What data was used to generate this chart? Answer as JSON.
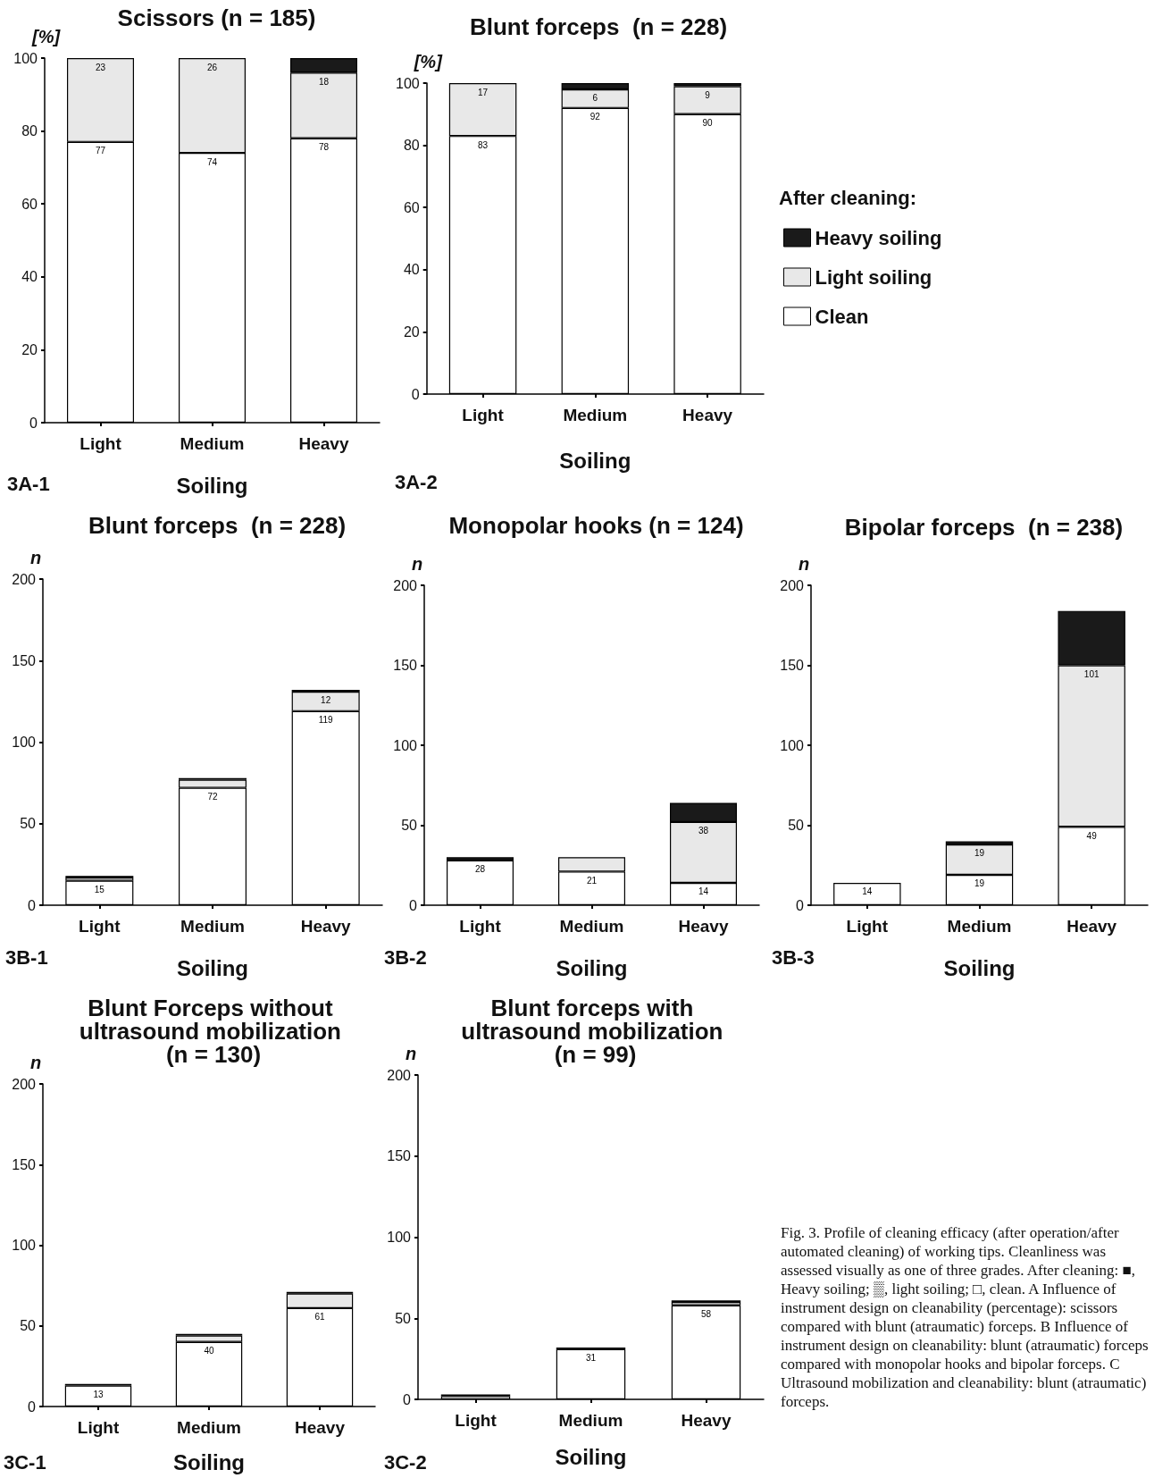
{
  "chart_data": [
    {
      "type": "bar",
      "title": "Scissors (n = 185)",
      "xlabel": "Soiling",
      "ylabel": "[%]",
      "categories": [
        "Light",
        "Medium",
        "Heavy"
      ],
      "stacked": true,
      "ylim": [
        0,
        100
      ],
      "yticks": [
        0,
        20,
        40,
        60,
        80,
        100
      ],
      "annotations": [
        "3A-1"
      ],
      "series": [
        {
          "color": "#ffffff",
          "values": [
            77,
            74,
            78
          ],
          "value_labels": [
            "77",
            "74",
            "78"
          ]
        },
        {
          "color": "#e8e8e8",
          "values": [
            23,
            26,
            18
          ],
          "value_labels": [
            "23",
            "26",
            "18"
          ]
        },
        {
          "color": "#1a1a1a",
          "values": [
            0,
            0,
            4
          ]
        }
      ]
    },
    {
      "type": "bar",
      "title": "Blunt forceps  (n = 228)",
      "xlabel": "Soiling",
      "ylabel": "[%]",
      "categories": [
        "Light",
        "Medium",
        "Heavy"
      ],
      "stacked": true,
      "ylim": [
        0,
        100
      ],
      "yticks": [
        0,
        20,
        40,
        60,
        80,
        100
      ],
      "annotations": [
        "3A-2"
      ],
      "legend": "right",
      "legend_title": "After cleaning:",
      "series": [
        {
          "name": "Clean",
          "color": "#ffffff",
          "values": [
            83,
            92,
            90
          ],
          "value_labels": [
            "83",
            "92",
            "90"
          ]
        },
        {
          "name": "Light soiling",
          "color": "#e8e8e8",
          "values": [
            17,
            6,
            9
          ],
          "value_labels": [
            "17",
            "6",
            "9"
          ]
        },
        {
          "name": "Heavy soiling",
          "color": "#1a1a1a",
          "values": [
            0,
            2,
            1
          ]
        }
      ]
    },
    {
      "type": "bar",
      "title": "Blunt forceps  (n = 228)",
      "xlabel": "Soiling",
      "ylabel": "n",
      "categories": [
        "Light",
        "Medium",
        "Heavy"
      ],
      "stacked": true,
      "ylim": [
        0,
        200
      ],
      "yticks": [
        0,
        50,
        100,
        150,
        200
      ],
      "annotations": [
        "3B-1"
      ],
      "series": [
        {
          "color": "#ffffff",
          "values": [
            15,
            72,
            119
          ],
          "value_labels": [
            "15",
            "72",
            "119"
          ]
        },
        {
          "color": "#e8e8e8",
          "values": [
            2,
            5,
            12
          ],
          "value_labels": [
            null,
            null,
            "12"
          ]
        },
        {
          "color": "#1a1a1a",
          "values": [
            1,
            1,
            1
          ]
        }
      ]
    },
    {
      "type": "bar",
      "title": "Monopolar hooks (n = 124)",
      "xlabel": "Soiling",
      "ylabel": "n",
      "categories": [
        "Light",
        "Medium",
        "Heavy"
      ],
      "stacked": true,
      "ylim": [
        0,
        200
      ],
      "yticks": [
        0,
        50,
        100,
        150,
        200
      ],
      "annotations": [
        "3B-2"
      ],
      "series": [
        {
          "color": "#ffffff",
          "values": [
            28,
            21,
            14
          ],
          "value_labels": [
            "28",
            "21",
            "14"
          ]
        },
        {
          "color": "#e8e8e8",
          "values": [
            0,
            9,
            38
          ],
          "value_labels": [
            null,
            null,
            "38"
          ]
        },
        {
          "color": "#1a1a1a",
          "values": [
            2,
            0,
            12
          ]
        }
      ]
    },
    {
      "type": "bar",
      "title": "Bipolar forceps  (n = 238)",
      "xlabel": "Soiling",
      "ylabel": "n",
      "categories": [
        "Light",
        "Medium",
        "Heavy"
      ],
      "stacked": true,
      "ylim": [
        0,
        200
      ],
      "yticks": [
        0,
        50,
        100,
        150,
        200
      ],
      "annotations": [
        "3B-3"
      ],
      "series": [
        {
          "color": "#ffffff",
          "values": [
            14,
            19,
            49
          ],
          "value_labels": [
            "14",
            "19",
            "49"
          ]
        },
        {
          "color": "#e8e8e8",
          "values": [
            0,
            19,
            101
          ],
          "value_labels": [
            null,
            "19",
            "101"
          ]
        },
        {
          "color": "#1a1a1a",
          "values": [
            0,
            2,
            34
          ]
        }
      ]
    },
    {
      "type": "bar",
      "title": "Blunt Forceps without ultrasound mobilization (n = 130)",
      "xlabel": "Soiling",
      "ylabel": "n",
      "categories": [
        "Light",
        "Medium",
        "Heavy"
      ],
      "stacked": true,
      "ylim": [
        0,
        200
      ],
      "yticks": [
        0,
        50,
        100,
        150,
        200
      ],
      "annotations": [
        "3C-1"
      ],
      "series": [
        {
          "color": "#ffffff",
          "values": [
            13,
            40,
            61
          ],
          "value_labels": [
            "13",
            "40",
            "61"
          ]
        },
        {
          "color": "#e8e8e8",
          "values": [
            0,
            4,
            9
          ]
        },
        {
          "color": "#1a1a1a",
          "values": [
            1,
            1,
            1
          ]
        }
      ]
    },
    {
      "type": "bar",
      "title": "Blunt forceps with ultrasound mobilization (n = 99)",
      "xlabel": "Soiling",
      "ylabel": "n",
      "categories": [
        "Light",
        "Medium",
        "Heavy"
      ],
      "stacked": true,
      "ylim": [
        0,
        200
      ],
      "yticks": [
        0,
        50,
        100,
        150,
        200
      ],
      "annotations": [
        "3C-2"
      ],
      "series": [
        {
          "color": "#ffffff",
          "values": [
            2,
            31,
            58
          ],
          "value_labels": [
            null,
            "31",
            "58"
          ]
        },
        {
          "color": "#e8e8e8",
          "values": [
            0,
            0,
            2
          ]
        },
        {
          "color": "#1a1a1a",
          "values": [
            1,
            1,
            1
          ]
        }
      ]
    },
    {
      "type": "other",
      "annotations": [
        "Fig. 3. Profile of cleaning efficacy (after operation/after automated cleaning) of working tips. Cleanliness was assessed visually as one of three grades. After cleaning: ■, Heavy soiling; ▒, light soiling; □, clean. A Influence of instrument design on cleanability (percentage): scissors compared with blunt (atraumatic) forceps. B Influence of instrument design on cleanability: blunt (atraumatic) forceps compared with monopolar hooks and bipolar forceps. C Ultrasound mobilization and cleanability: blunt (atraumatic) forceps."
      ]
    }
  ]
}
